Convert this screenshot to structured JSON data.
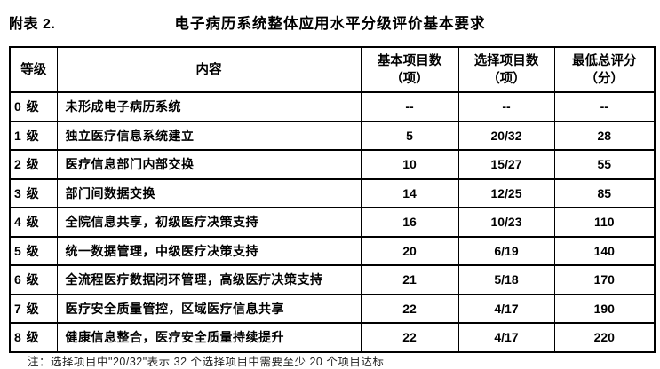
{
  "page": {
    "label": "附表 2.",
    "title": "电子病历系统整体应用水平分级评价基本要求"
  },
  "table": {
    "columns": [
      {
        "line1": "等级"
      },
      {
        "line1": "内容"
      },
      {
        "line1": "基本项目数",
        "line2": "（项）"
      },
      {
        "line1": "选择项目数",
        "line2": "（项）"
      },
      {
        "line1": "最低总评分",
        "line2": "（分）"
      }
    ],
    "rows": [
      {
        "level": "0 级",
        "content": "未形成电子病历系统",
        "basic": "--",
        "optional": "--",
        "min_score": "--"
      },
      {
        "level": "1 级",
        "content": "独立医疗信息系统建立",
        "basic": "5",
        "optional": "20/32",
        "min_score": "28"
      },
      {
        "level": "2 级",
        "content": "医疗信息部门内部交换",
        "basic": "10",
        "optional": "15/27",
        "min_score": "55"
      },
      {
        "level": "3 级",
        "content": "部门间数据交换",
        "basic": "14",
        "optional": "12/25",
        "min_score": "85"
      },
      {
        "level": "4 级",
        "content": "全院信息共享，初级医疗决策支持",
        "basic": "16",
        "optional": "10/23",
        "min_score": "110"
      },
      {
        "level": "5 级",
        "content": "统一数据管理，中级医疗决策支持",
        "basic": "20",
        "optional": "6/19",
        "min_score": "140"
      },
      {
        "level": "6 级",
        "content": "全流程医疗数据闭环管理，高级医疗决策支持",
        "basic": "21",
        "optional": "5/18",
        "min_score": "170"
      },
      {
        "level": "7 级",
        "content": "医疗安全质量管控，区域医疗信息共享",
        "basic": "22",
        "optional": "4/17",
        "min_score": "190"
      },
      {
        "level": "8 级",
        "content": "健康信息整合，医疗安全质量持续提升",
        "basic": "22",
        "optional": "4/17",
        "min_score": "220"
      }
    ]
  },
  "footnote": "注：选择项目中\"20/32\"表示 32 个选择项目中需要至少 20 个项目达标"
}
